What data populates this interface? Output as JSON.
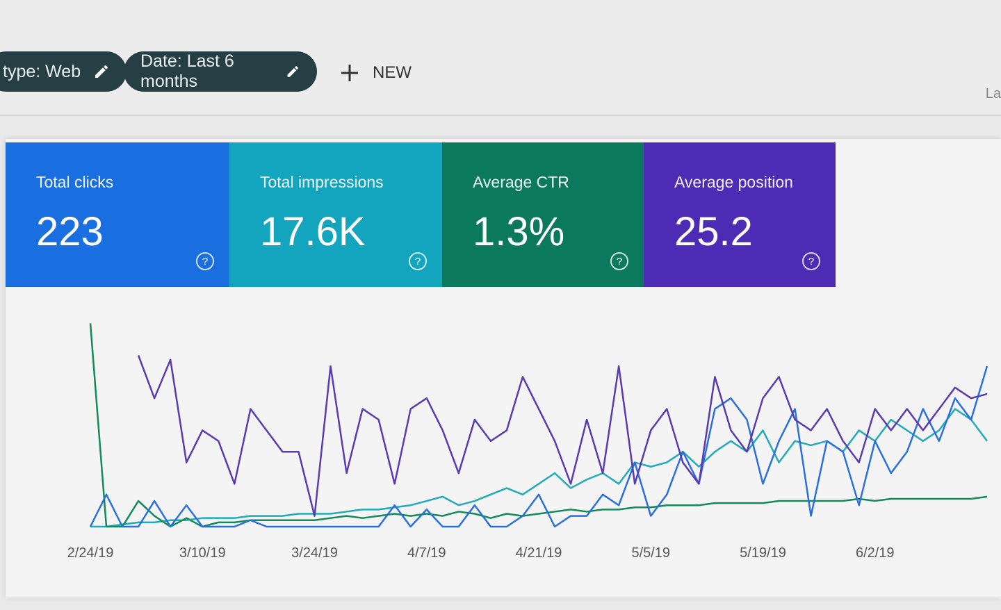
{
  "filters": [
    {
      "label": "type: Web",
      "icon": "pencil-icon"
    },
    {
      "label": "Date: Last 6 months",
      "icon": "pencil-icon"
    }
  ],
  "new_button": {
    "label": "NEW",
    "icon": "plus-icon"
  },
  "truncated_text": "La",
  "cards": [
    {
      "label": "Total clicks",
      "value": "223",
      "color": "#1a6fe0"
    },
    {
      "label": "Total impressions",
      "value": "17.6K",
      "color": "#13a5bd"
    },
    {
      "label": "Average CTR",
      "value": "1.3%",
      "color": "#0b7a5c"
    },
    {
      "label": "Average position",
      "value": "25.2",
      "color": "#4d2bb4"
    }
  ],
  "chart_data": {
    "type": "line",
    "title": "",
    "xlabel": "",
    "ylabel": "",
    "x_tick_labels": [
      "2/24/19",
      "3/10/19",
      "3/24/19",
      "4/7/19",
      "4/21/19",
      "5/5/19",
      "5/19/19",
      "6/2/19"
    ],
    "grid": false,
    "legend": "none",
    "series": [
      {
        "metric": "Total impressions",
        "color": "#22aab8",
        "values": [
          0,
          0,
          1,
          2,
          2,
          3,
          3,
          4,
          4,
          4,
          5,
          5,
          5,
          6,
          6,
          6,
          7,
          8,
          8,
          9,
          10,
          12,
          14,
          10,
          12,
          15,
          18,
          15,
          20,
          25,
          18,
          22,
          25,
          20,
          30,
          28,
          30,
          35,
          28,
          35,
          40,
          35,
          45,
          30,
          40,
          38,
          40,
          35,
          45,
          40,
          50,
          45,
          40,
          45,
          55,
          50,
          40
        ]
      },
      {
        "metric": "Average CTR",
        "color": "#138a5a",
        "values": [
          95,
          0,
          0,
          12,
          5,
          0,
          4,
          0,
          2,
          2,
          3,
          3,
          3,
          3,
          3,
          4,
          5,
          4,
          5,
          6,
          5,
          6,
          5,
          7,
          6,
          4,
          6,
          5,
          6,
          7,
          8,
          7,
          8,
          8,
          9,
          9,
          10,
          10,
          10,
          11,
          11,
          11,
          11,
          12,
          12,
          12,
          12,
          12,
          13,
          12,
          13,
          13,
          13,
          13,
          13,
          13,
          14
        ]
      },
      {
        "metric": "Total clicks",
        "color": "#2a6fe0",
        "values": [
          0,
          15,
          0,
          0,
          12,
          0,
          10,
          0,
          0,
          0,
          3,
          0,
          0,
          0,
          0,
          0,
          0,
          0,
          0,
          10,
          0,
          8,
          0,
          0,
          10,
          0,
          0,
          5,
          15,
          0,
          5,
          5,
          15,
          10,
          30,
          5,
          15,
          35,
          20,
          55,
          60,
          50,
          20,
          40,
          55,
          5,
          40,
          35,
          10,
          40,
          25,
          35,
          55,
          40,
          60,
          50,
          75
        ]
      },
      {
        "metric": "Average position",
        "color": "#5a3ab0",
        "values": [
          100,
          null,
          null,
          80,
          60,
          78,
          30,
          45,
          40,
          20,
          55,
          45,
          35,
          35,
          5,
          75,
          25,
          55,
          50,
          20,
          55,
          60,
          45,
          25,
          50,
          40,
          45,
          70,
          55,
          40,
          20,
          50,
          25,
          75,
          20,
          45,
          55,
          30,
          20,
          70,
          45,
          35,
          60,
          70,
          50,
          45,
          55,
          40,
          30,
          55,
          45,
          55,
          45,
          55,
          65,
          60,
          62
        ]
      }
    ]
  }
}
